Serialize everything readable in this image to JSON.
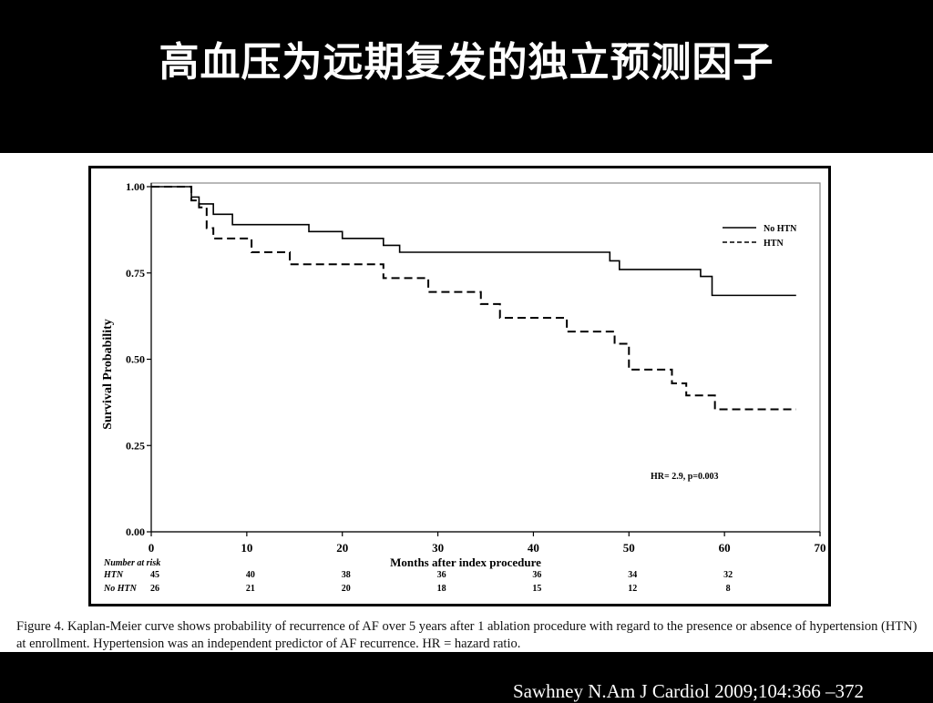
{
  "slide": {
    "title": "高血压为远期复发的独立预测因子",
    "citation": "Sawhney N.Am J Cardiol 2009;104:366 –372"
  },
  "caption": "Figure 4. Kaplan-Meier curve shows probability of recurrence of AF over 5 years after 1 ablation procedure with regard to the presence or absence of hypertension (HTN) at enrollment. Hypertension was an independent predictor of AF recurrence. HR = hazard ratio.",
  "chart_data": {
    "type": "line",
    "step": true,
    "xlabel": "Months after index procedure",
    "ylabel": "Survival Probability",
    "xlim": [
      0,
      70
    ],
    "ylim": [
      0,
      1
    ],
    "x_ticks": [
      "0",
      "10",
      "20",
      "30",
      "40",
      "50",
      "60",
      "70"
    ],
    "y_ticks": [
      "0.00",
      "0.25",
      "0.50",
      "0.75",
      "1.00"
    ],
    "grid": false,
    "legend_position": "top-right",
    "annotation": "HR= 2.9, p=0.003",
    "series": [
      {
        "name": "No HTN",
        "style": "solid",
        "x": [
          0,
          4.2,
          5,
          6.5,
          8.5,
          16.5,
          20,
          24.3,
          26,
          48,
          49,
          57.5,
          58.7,
          67.5
        ],
        "y": [
          1.0,
          0.97,
          0.95,
          0.92,
          0.89,
          0.87,
          0.85,
          0.83,
          0.81,
          0.785,
          0.76,
          0.74,
          0.685,
          0.685
        ]
      },
      {
        "name": "HTN",
        "style": "dashed",
        "x": [
          0,
          4.2,
          5,
          5.8,
          6.5,
          10.5,
          14.5,
          24.3,
          29,
          34.5,
          36.5,
          43.5,
          48.5,
          50,
          54.5,
          56,
          59,
          67.5
        ],
        "y": [
          1.0,
          0.96,
          0.94,
          0.88,
          0.85,
          0.81,
          0.775,
          0.735,
          0.695,
          0.66,
          0.62,
          0.58,
          0.545,
          0.47,
          0.43,
          0.395,
          0.355,
          0.355
        ]
      }
    ],
    "risk_table": {
      "title": "Number at risk",
      "rows": [
        {
          "label": "HTN",
          "values": [
            "45",
            "40",
            "38",
            "36",
            "36",
            "34",
            "32"
          ]
        },
        {
          "label": "No HTN",
          "values": [
            "26",
            "21",
            "20",
            "18",
            "15",
            "12",
            "8"
          ]
        }
      ]
    }
  }
}
